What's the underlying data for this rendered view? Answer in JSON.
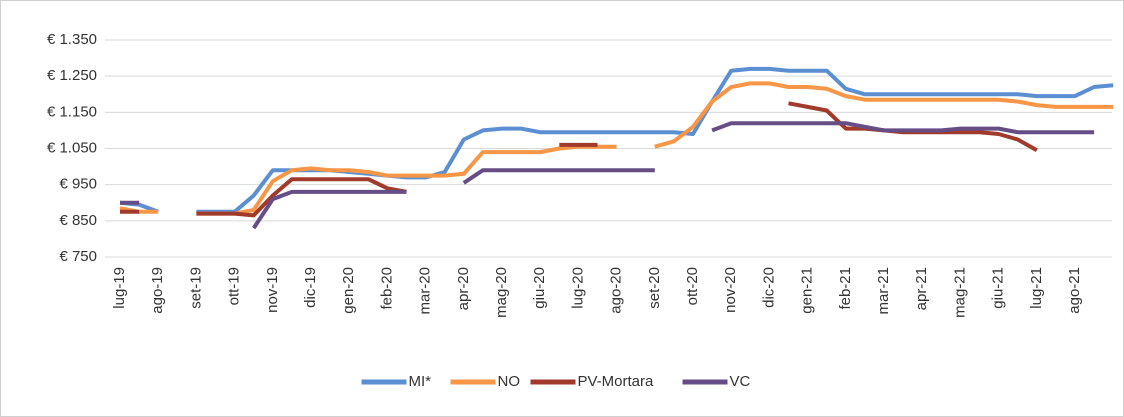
{
  "chart_data": {
    "type": "line",
    "categories": [
      "lug-19",
      null,
      "ago-19",
      null,
      "set-19",
      null,
      "ott-19",
      null,
      "nov-19",
      null,
      "dic-19",
      null,
      "gen-20",
      null,
      "feb-20",
      null,
      "mar-20",
      null,
      "apr-20",
      null,
      "mag-20",
      null,
      "giu-20",
      null,
      "lug-20",
      null,
      "ago-20",
      null,
      "set-20",
      null,
      "ott-20",
      null,
      "nov-20",
      null,
      "dic-20",
      null,
      "gen-21",
      null,
      "feb-21",
      null,
      "mar-21",
      null,
      "apr-21",
      null,
      "mag-21",
      null,
      "giu-21",
      null,
      "lug-21",
      null,
      "ago-21",
      null,
      null
    ],
    "series": [
      {
        "name": "MI*",
        "color": "#5b8fd2",
        "values": [
          900,
          895,
          875,
          null,
          875,
          875,
          875,
          920,
          990,
          990,
          990,
          990,
          985,
          980,
          975,
          970,
          970,
          985,
          1075,
          1100,
          1105,
          1105,
          1095,
          1095,
          1095,
          1095,
          1095,
          1095,
          1095,
          1095,
          1090,
          1180,
          1265,
          1270,
          1270,
          1265,
          1265,
          1265,
          1215,
          1200,
          1200,
          1200,
          1200,
          1200,
          1200,
          1200,
          1200,
          1200,
          1195,
          1195,
          1195,
          1220,
          1225
        ]
      },
      {
        "name": "NO",
        "color": "#f79646",
        "values": [
          885,
          875,
          875,
          null,
          870,
          870,
          870,
          880,
          960,
          990,
          995,
          990,
          990,
          985,
          975,
          975,
          975,
          975,
          980,
          1040,
          1040,
          1040,
          1040,
          1050,
          1055,
          1055,
          1055,
          null,
          1055,
          1070,
          1110,
          1180,
          1220,
          1230,
          1230,
          1220,
          1220,
          1215,
          1195,
          1185,
          1185,
          1185,
          1185,
          1185,
          1185,
          1185,
          1185,
          1180,
          1170,
          1165,
          1165,
          1165,
          1165
        ]
      },
      {
        "name": "PV-Mortara",
        "color": "#a23a2c",
        "values": [
          875,
          875,
          null,
          null,
          870,
          870,
          870,
          865,
          920,
          965,
          965,
          965,
          965,
          965,
          940,
          930,
          null,
          null,
          null,
          null,
          null,
          null,
          null,
          1060,
          1060,
          1060,
          null,
          null,
          null,
          null,
          null,
          null,
          null,
          null,
          null,
          1175,
          1165,
          1155,
          1105,
          1105,
          1100,
          1095,
          1095,
          1095,
          1095,
          1095,
          1090,
          1075,
          1045,
          null,
          null,
          null,
          null
        ]
      },
      {
        "name": "VC",
        "color": "#664d86",
        "values": [
          900,
          900,
          null,
          null,
          878,
          null,
          null,
          830,
          910,
          930,
          930,
          930,
          930,
          930,
          930,
          930,
          null,
          null,
          955,
          990,
          990,
          990,
          990,
          990,
          990,
          990,
          990,
          990,
          990,
          null,
          null,
          1100,
          1120,
          1120,
          1120,
          1120,
          1120,
          1120,
          1120,
          1110,
          1100,
          1100,
          1100,
          1100,
          1105,
          1105,
          1105,
          1095,
          1095,
          1095,
          1095,
          1095,
          null
        ]
      }
    ],
    "ylim": [
      750,
      1350
    ],
    "yticks": [
      {
        "value": 750,
        "label": "€ 750"
      },
      {
        "value": 850,
        "label": "€ 850"
      },
      {
        "value": 950,
        "label": "€ 950"
      },
      {
        "value": 1050,
        "label": "€ 1.050"
      },
      {
        "value": 1150,
        "label": "€ 1.150"
      },
      {
        "value": 1250,
        "label": "€ 1.250"
      },
      {
        "value": 1350,
        "label": "€ 1.350"
      }
    ],
    "grid": true,
    "legend": "bottom"
  }
}
